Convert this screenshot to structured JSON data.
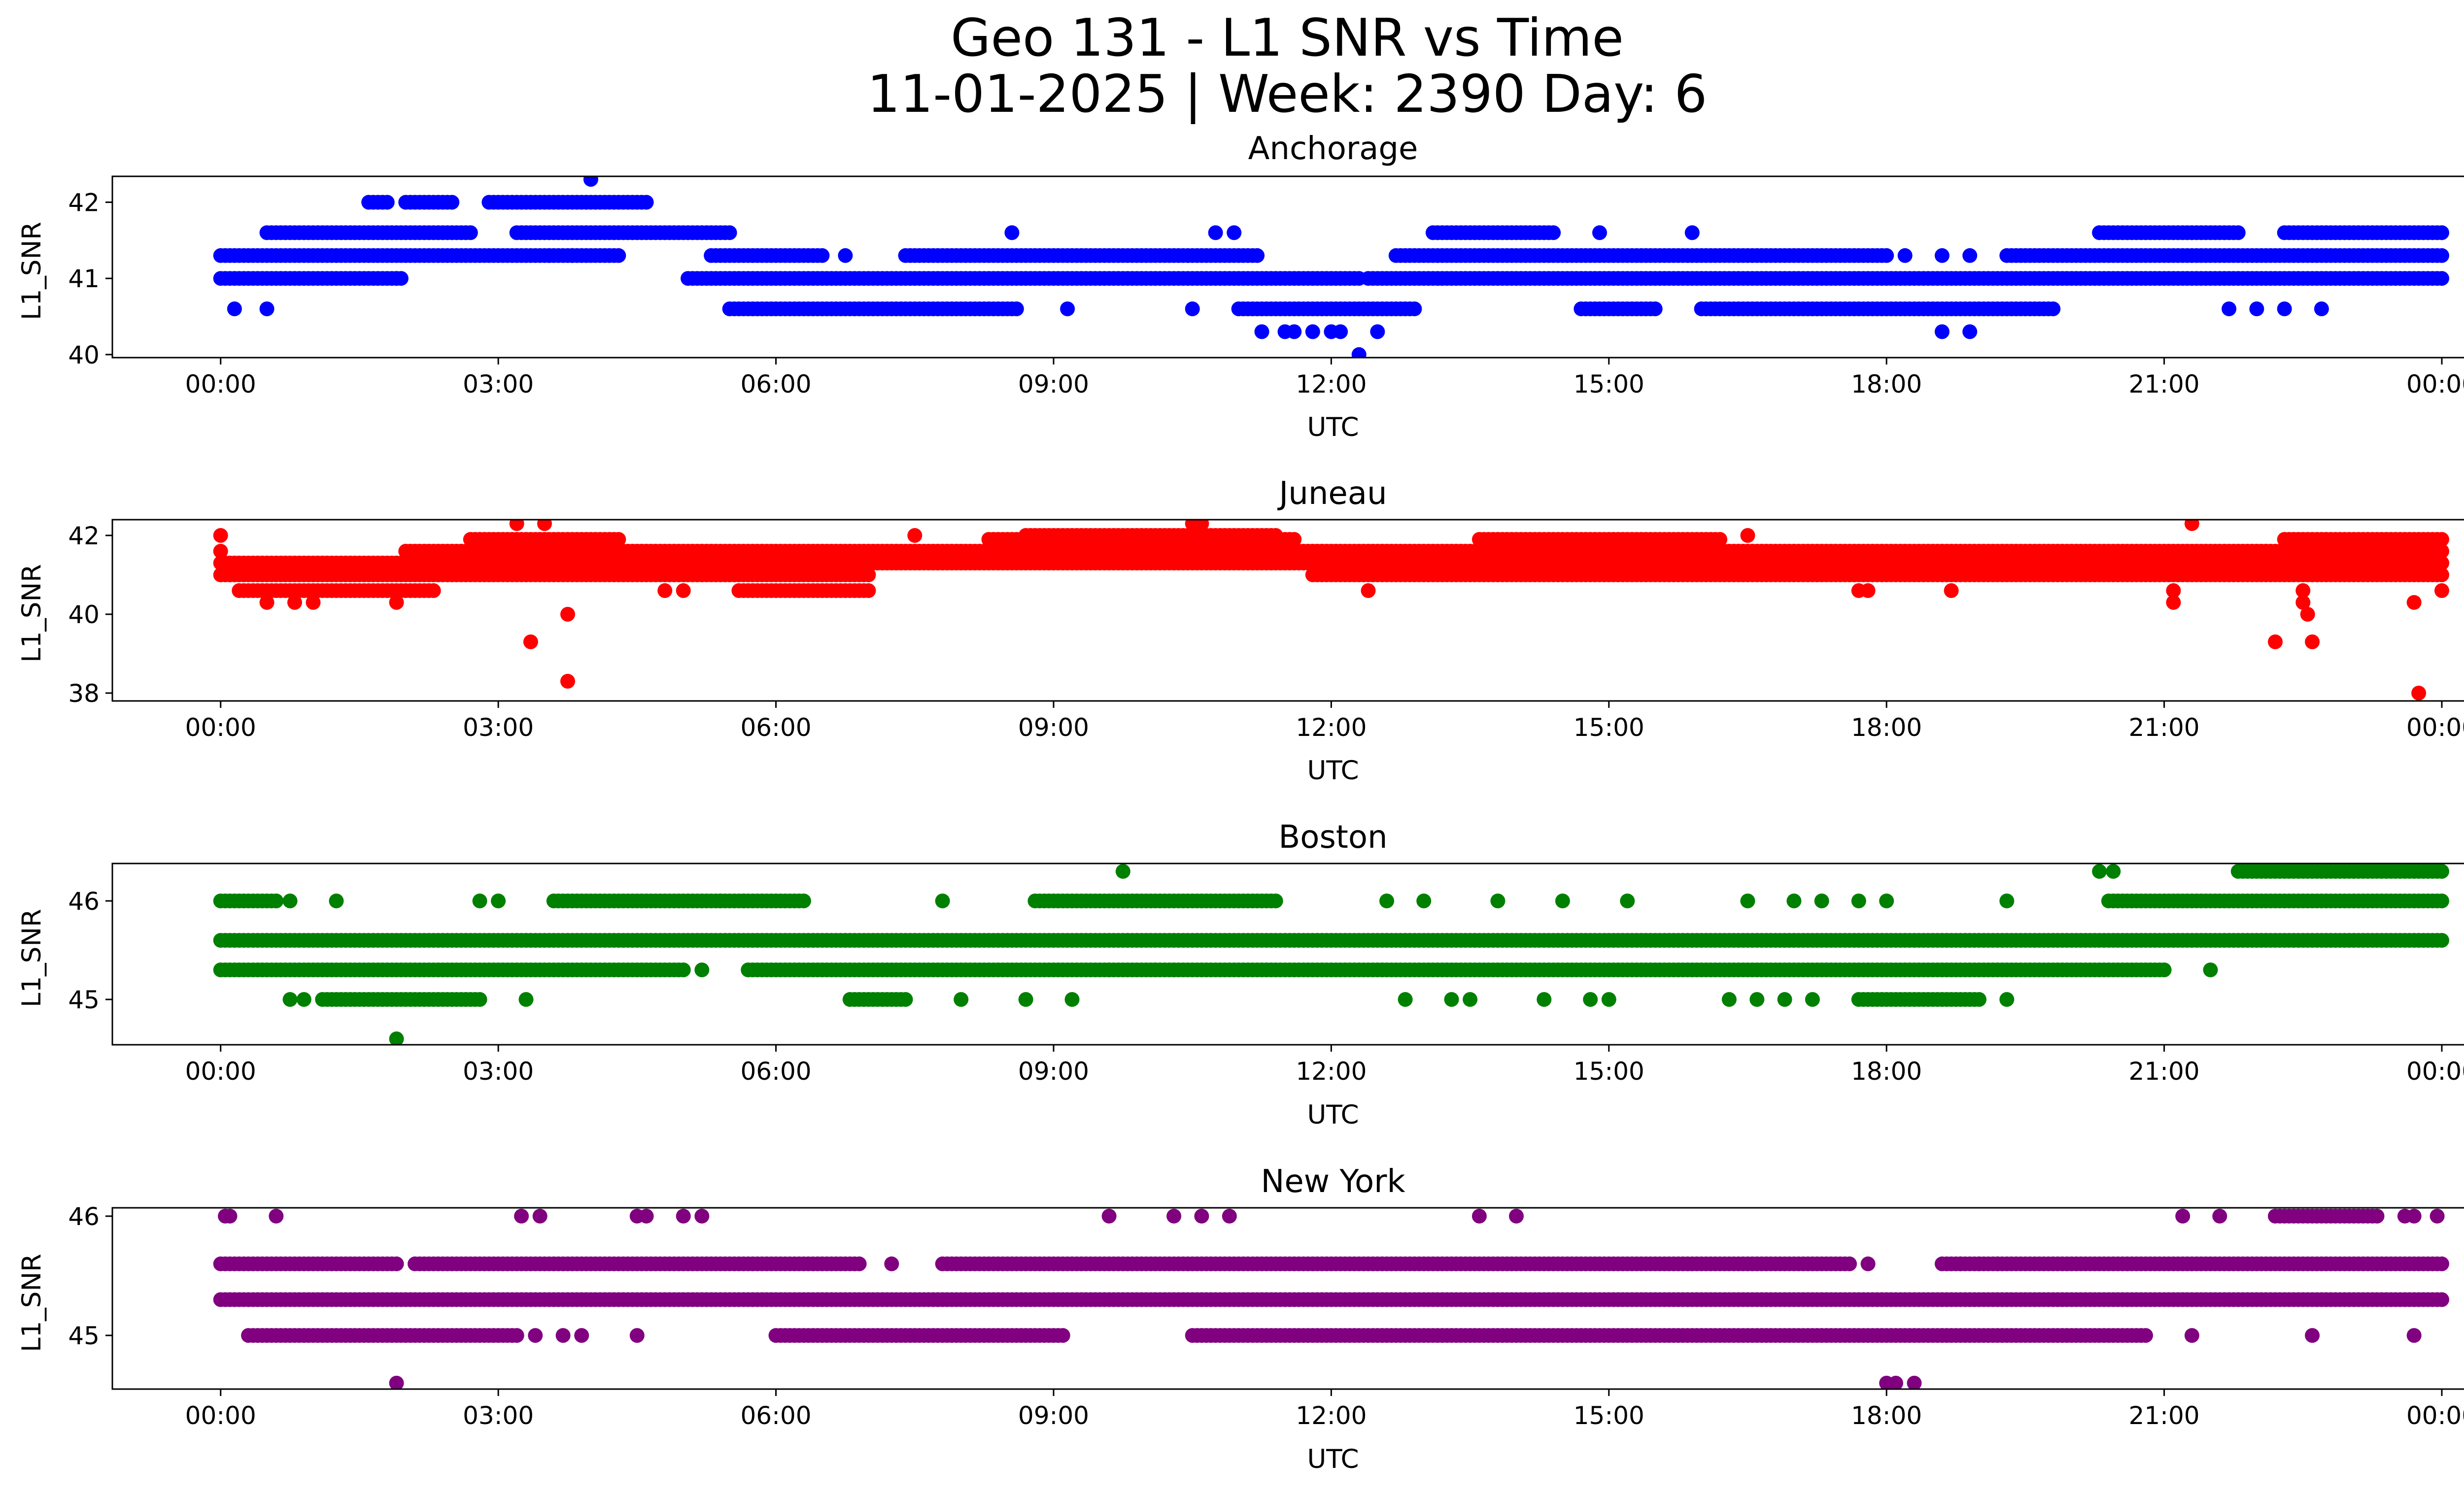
{
  "figure": {
    "title_line1": "Geo 131 - L1 SNR vs Time",
    "title_line2": "11-01-2025 | Week: 2390 Day: 6"
  },
  "chart_data": [
    {
      "type": "scatter",
      "title": "Anchorage",
      "color": "#0000ff",
      "xlabel": "UTC",
      "ylabel": "L1_SNR",
      "xticks": [
        "00:00",
        "03:00",
        "06:00",
        "09:00",
        "12:00",
        "15:00",
        "18:00",
        "21:00",
        "00:00"
      ],
      "xlim_hours": [
        -1.17,
        25.23
      ],
      "ylim": [
        39.96,
        42.34
      ],
      "yticks": [
        40,
        41,
        42
      ],
      "bands": [
        {
          "y": 41.0,
          "segments": [
            [
              0,
              1.55
            ],
            [
              1.6,
              1.95
            ],
            [
              5.05,
              12.3
            ],
            [
              12.4,
              24
            ]
          ]
        },
        {
          "y": 41.3,
          "segments": [
            [
              0,
              4.3
            ],
            [
              5.3,
              6.5
            ],
            [
              7.4,
              11.2
            ],
            [
              12.7,
              18.0
            ],
            [
              19.3,
              24
            ]
          ]
        },
        {
          "y": 41.6,
          "segments": [
            [
              0.5,
              2.7
            ],
            [
              3.2,
              5.5
            ],
            [
              13.1,
              14.4
            ],
            [
              20.3,
              21.8
            ],
            [
              22.3,
              24
            ]
          ]
        },
        {
          "y": 40.6,
          "segments": [
            [
              5.5,
              8.6
            ],
            [
              11.0,
              12.9
            ],
            [
              14.7,
              15.5
            ],
            [
              16.0,
              19.8
            ]
          ]
        },
        {
          "y": 42.0,
          "segments": [
            [
              1.6,
              1.8
            ],
            [
              2.0,
              2.5
            ],
            [
              2.9,
              4.6
            ]
          ]
        }
      ],
      "points": [
        [
          0.15,
          40.6
        ],
        [
          0.5,
          40.6
        ],
        [
          1.9,
          41.0
        ],
        [
          3.55,
          41.3
        ],
        [
          3.8,
          41.3
        ],
        [
          4.0,
          42.3
        ],
        [
          6.75,
          41.3
        ],
        [
          8.55,
          41.6
        ],
        [
          9.15,
          40.6
        ],
        [
          10.5,
          40.6
        ],
        [
          10.75,
          41.6
        ],
        [
          10.95,
          41.6
        ],
        [
          11.25,
          40.3
        ],
        [
          11.5,
          40.3
        ],
        [
          11.6,
          40.3
        ],
        [
          11.8,
          40.3
        ],
        [
          12.0,
          40.3
        ],
        [
          12.1,
          40.3
        ],
        [
          12.3,
          40.0
        ],
        [
          12.5,
          40.3
        ],
        [
          14.9,
          41.6
        ],
        [
          15.9,
          41.6
        ],
        [
          18.6,
          40.3
        ],
        [
          18.9,
          40.3
        ],
        [
          18.2,
          41.3
        ],
        [
          18.6,
          41.3
        ],
        [
          18.9,
          41.3
        ],
        [
          21.7,
          40.6
        ],
        [
          22.0,
          40.6
        ],
        [
          22.3,
          40.6
        ],
        [
          22.7,
          40.6
        ]
      ]
    },
    {
      "type": "scatter",
      "title": "Juneau",
      "color": "#ff0000",
      "xlabel": "UTC",
      "ylabel": "L1_SNR",
      "xticks": [
        "00:00",
        "03:00",
        "06:00",
        "09:00",
        "12:00",
        "15:00",
        "18:00",
        "21:00",
        "00:00"
      ],
      "xlim_hours": [
        -1.17,
        25.23
      ],
      "ylim": [
        37.8,
        42.4
      ],
      "yticks": [
        38,
        40,
        42
      ],
      "bands": [
        {
          "y": 41.0,
          "segments": [
            [
              0,
              7.0
            ],
            [
              11.8,
              24
            ]
          ]
        },
        {
          "y": 41.3,
          "segments": [
            [
              0,
              24
            ]
          ]
        },
        {
          "y": 41.6,
          "segments": [
            [
              2.0,
              24
            ]
          ]
        },
        {
          "y": 41.9,
          "segments": [
            [
              2.7,
              4.3
            ],
            [
              8.3,
              11.6
            ],
            [
              13.6,
              16.2
            ],
            [
              22.3,
              24
            ]
          ]
        },
        {
          "y": 40.6,
          "segments": [
            [
              0.2,
              2.3
            ],
            [
              5.6,
              7.0
            ]
          ]
        },
        {
          "y": 42.0,
          "segments": [
            [
              8.7,
              11.4
            ]
          ]
        }
      ],
      "points": [
        [
          0,
          42.0
        ],
        [
          0.5,
          40.3
        ],
        [
          0.8,
          40.3
        ],
        [
          1.0,
          40.3
        ],
        [
          1.9,
          40.3
        ],
        [
          3.35,
          39.3
        ],
        [
          3.75,
          40.0
        ],
        [
          3.75,
          38.3
        ],
        [
          3.2,
          42.3
        ],
        [
          3.5,
          42.3
        ],
        [
          4.8,
          40.6
        ],
        [
          5.0,
          40.6
        ],
        [
          7.5,
          42.0
        ],
        [
          10.5,
          42.3
        ],
        [
          10.6,
          42.3
        ],
        [
          12.4,
          40.6
        ],
        [
          16.5,
          42.0
        ],
        [
          17.7,
          40.6
        ],
        [
          17.8,
          40.6
        ],
        [
          18.7,
          40.6
        ],
        [
          21.1,
          40.6
        ],
        [
          21.1,
          40.3
        ],
        [
          21.3,
          42.3
        ],
        [
          22.2,
          39.3
        ],
        [
          22.5,
          40.6
        ],
        [
          22.5,
          40.3
        ],
        [
          22.55,
          40.0
        ],
        [
          22.6,
          39.3
        ],
        [
          23.7,
          40.3
        ],
        [
          23.75,
          38.0
        ],
        [
          24,
          41.3
        ],
        [
          24,
          40.6
        ],
        [
          0,
          41.6
        ]
      ]
    },
    {
      "type": "scatter",
      "title": "Boston",
      "color": "#008000",
      "xlabel": "UTC",
      "ylabel": "L1_SNR",
      "xticks": [
        "00:00",
        "03:00",
        "06:00",
        "09:00",
        "12:00",
        "15:00",
        "18:00",
        "21:00",
        "00:00"
      ],
      "xlim_hours": [
        -1.17,
        25.23
      ],
      "ylim": [
        44.54,
        46.38
      ],
      "yticks": [
        45,
        46
      ],
      "bands": [
        {
          "y": 45.6,
          "segments": [
            [
              0,
              24
            ]
          ]
        },
        {
          "y": 45.3,
          "segments": [
            [
              0,
              5.0
            ],
            [
              5.7,
              21.0
            ]
          ]
        },
        {
          "y": 46.0,
          "segments": [
            [
              0,
              0.6
            ],
            [
              3.6,
              6.3
            ],
            [
              8.8,
              11.4
            ],
            [
              20.4,
              24
            ]
          ]
        },
        {
          "y": 45.0,
          "segments": [
            [
              1.1,
              2.8
            ],
            [
              6.8,
              7.4
            ],
            [
              17.7,
              19.0
            ]
          ]
        },
        {
          "y": 46.3,
          "segments": [
            [
              21.8,
              24
            ]
          ]
        }
      ],
      "points": [
        [
          0.75,
          46.0
        ],
        [
          1.25,
          46.0
        ],
        [
          2.8,
          46.0
        ],
        [
          3.0,
          46.0
        ],
        [
          3.3,
          45.0
        ],
        [
          0.75,
          45.0
        ],
        [
          0.9,
          45.0
        ],
        [
          1.9,
          44.6
        ],
        [
          5.2,
          45.3
        ],
        [
          5.4,
          46.0
        ],
        [
          5.65,
          46.0
        ],
        [
          7.8,
          46.0
        ],
        [
          8.0,
          45.0
        ],
        [
          8.7,
          45.0
        ],
        [
          9.2,
          45.0
        ],
        [
          9.75,
          46.3
        ],
        [
          9.6,
          45.3
        ],
        [
          10.1,
          45.3
        ],
        [
          10.3,
          45.3
        ],
        [
          12.8,
          45.0
        ],
        [
          13.3,
          45.0
        ],
        [
          13.5,
          45.0
        ],
        [
          14.3,
          45.0
        ],
        [
          14.8,
          45.0
        ],
        [
          15.0,
          45.0
        ],
        [
          16.3,
          45.0
        ],
        [
          16.6,
          45.0
        ],
        [
          16.9,
          45.0
        ],
        [
          17.2,
          45.0
        ],
        [
          17.0,
          46.0
        ],
        [
          17.3,
          46.0
        ],
        [
          17.7,
          46.0
        ],
        [
          18.0,
          46.0
        ],
        [
          19.3,
          45.0
        ],
        [
          19.3,
          46.0
        ],
        [
          20.3,
          46.3
        ],
        [
          20.45,
          46.3
        ],
        [
          21.5,
          45.3
        ],
        [
          12.6,
          46.0
        ],
        [
          13.0,
          46.0
        ],
        [
          13.8,
          46.0
        ],
        [
          14.5,
          46.0
        ],
        [
          15.2,
          46.0
        ],
        [
          16.5,
          46.0
        ]
      ]
    },
    {
      "type": "scatter",
      "title": "New York",
      "color": "#800080",
      "xlabel": "UTC",
      "ylabel": "L1_SNR",
      "xticks": [
        "00:00",
        "03:00",
        "06:00",
        "09:00",
        "12:00",
        "15:00",
        "18:00",
        "21:00",
        "00:00"
      ],
      "xlim_hours": [
        -1.17,
        25.23
      ],
      "ylim": [
        44.55,
        46.07
      ],
      "yticks": [
        45,
        46
      ],
      "bands": [
        {
          "y": 45.3,
          "segments": [
            [
              0,
              24
            ]
          ]
        },
        {
          "y": 45.6,
          "segments": [
            [
              0,
              1.9
            ],
            [
              2.1,
              6.9
            ],
            [
              7.8,
              17.6
            ],
            [
              18.6,
              24
            ]
          ]
        },
        {
          "y": 45.0,
          "segments": [
            [
              0.3,
              3.2
            ],
            [
              6.0,
              9.1
            ],
            [
              10.5,
              20.8
            ]
          ]
        },
        {
          "y": 46.0,
          "segments": [
            [
              22.2,
              23.3
            ]
          ]
        }
      ],
      "points": [
        [
          0.05,
          46.0
        ],
        [
          0.1,
          46.0
        ],
        [
          0.6,
          46.0
        ],
        [
          3.25,
          46.0
        ],
        [
          3.45,
          46.0
        ],
        [
          4.5,
          46.0
        ],
        [
          4.6,
          46.0
        ],
        [
          5.0,
          46.0
        ],
        [
          5.2,
          46.0
        ],
        [
          9.6,
          46.0
        ],
        [
          10.3,
          46.0
        ],
        [
          10.6,
          46.0
        ],
        [
          10.9,
          46.0
        ],
        [
          13.6,
          46.0
        ],
        [
          14.0,
          46.0
        ],
        [
          21.2,
          46.0
        ],
        [
          21.6,
          46.0
        ],
        [
          23.6,
          46.0
        ],
        [
          23.7,
          46.0
        ],
        [
          23.95,
          46.0
        ],
        [
          1.9,
          44.6
        ],
        [
          18.0,
          44.6
        ],
        [
          18.1,
          44.6
        ],
        [
          18.3,
          44.6
        ],
        [
          7.25,
          45.6
        ],
        [
          17.8,
          45.6
        ],
        [
          18.8,
          45.6
        ],
        [
          19.0,
          45.6
        ],
        [
          19.2,
          45.6
        ],
        [
          3.4,
          45.0
        ],
        [
          3.7,
          45.0
        ],
        [
          3.9,
          45.0
        ],
        [
          4.5,
          45.0
        ],
        [
          22.6,
          45.0
        ],
        [
          23.7,
          45.0
        ],
        [
          21.3,
          45.0
        ]
      ]
    }
  ]
}
